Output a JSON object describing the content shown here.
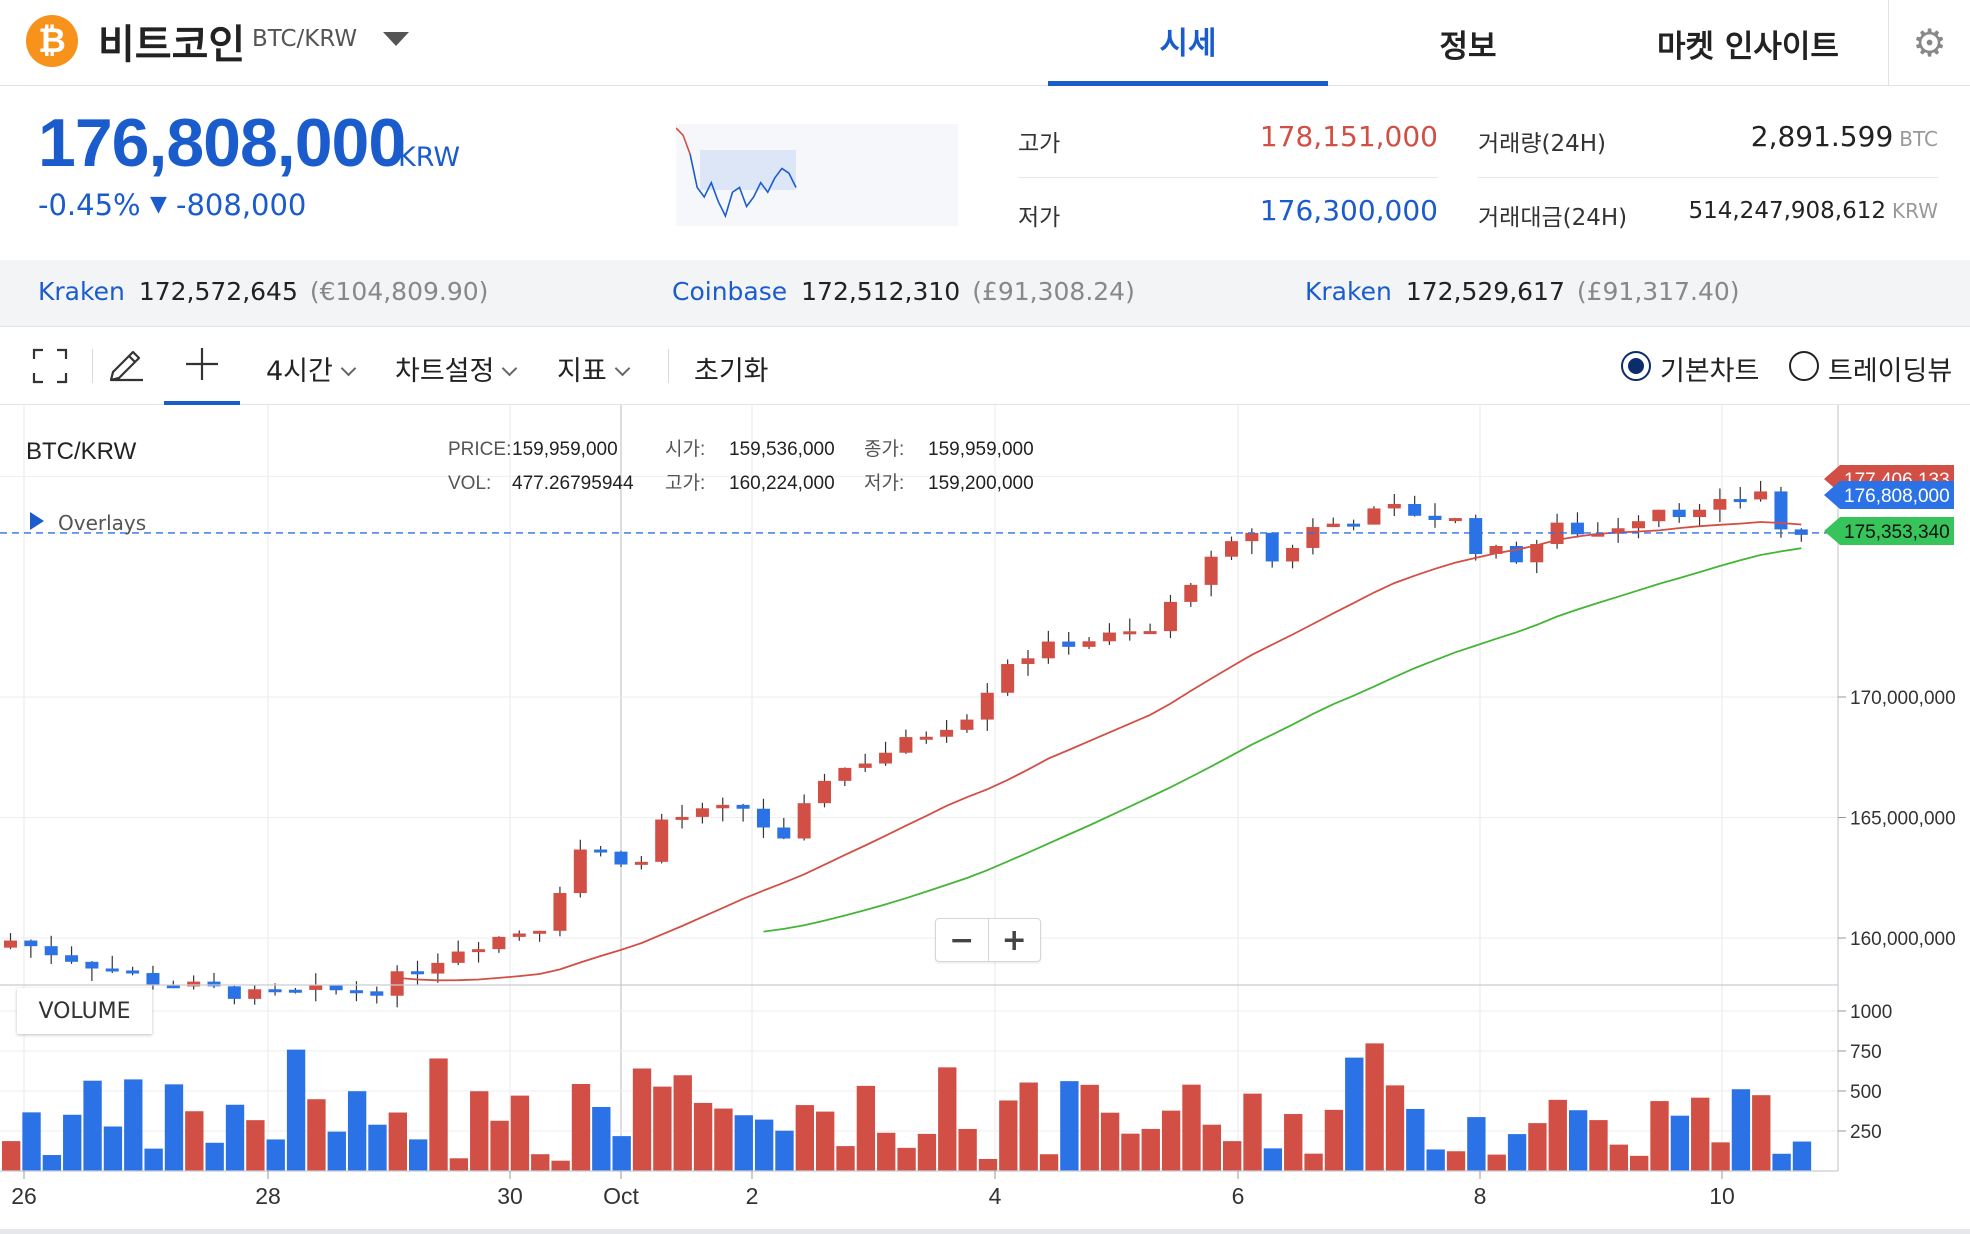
{
  "header": {
    "coin_symbol": "₿",
    "coin_name": "비트코인",
    "pair": "BTC/KRW",
    "tabs": [
      "시세",
      "정보",
      "마켓 인사이트"
    ],
    "active_tab": "시세",
    "settings_icon": "gear-icon"
  },
  "summary": {
    "price": "176,808,000",
    "price_unit": "KRW",
    "change_pct": "-0.45%",
    "change_arrow": "▼",
    "change_amt": "-808,000",
    "high_label": "고가",
    "high_value": "178,151,000",
    "low_label": "저가",
    "low_value": "176,300,000",
    "volume_label": "거래량(24H)",
    "volume_value": "2,891.599",
    "volume_unit": "BTC",
    "turnover_label": "거래대금(24H)",
    "turnover_value": "514,247,908,612",
    "turnover_unit": "KRW",
    "colors": {
      "rise": "#d24f45",
      "fall": "#1a5ccc"
    }
  },
  "sparkline": [
    178.15,
    178.0,
    177.6,
    176.9,
    176.7,
    177.0,
    176.6,
    176.3,
    176.8,
    176.9,
    176.5,
    176.7,
    177.0,
    176.8,
    177.1,
    177.3,
    177.2,
    176.9
  ],
  "exchanges": [
    {
      "name": "Kraken",
      "price": "172,572,645",
      "sub": "(€104,809.90)"
    },
    {
      "name": "Coinbase",
      "price": "172,512,310",
      "sub": "(£91,308.24)"
    },
    {
      "name": "Kraken",
      "price": "172,529,617",
      "sub": "(£91,317.40)"
    }
  ],
  "toolbar": {
    "expand_icon": "expand-icon",
    "draw_icon": "pencil-icon",
    "crosshair_icon": "crosshair-icon",
    "interval": "4시간",
    "chart_settings": "차트설정",
    "indicators": "지표",
    "reset": "초기화",
    "basic_chart": "기본차트",
    "tradingview": "트레이딩뷰"
  },
  "legend": {
    "symbol": "BTC/KRW",
    "price_label": "PRICE:",
    "price": "159,959,000",
    "vol_label": "VOL:",
    "vol": "477.26795944",
    "open_label": "시가:",
    "open": "159,536,000",
    "high_label": "고가:",
    "high": "160,224,000",
    "close_label": "종가:",
    "close": "159,959,000",
    "low_label": "저가:",
    "low": "159,200,000",
    "overlays": "Overlays"
  },
  "volume_title": "VOLUME",
  "chart_data": {
    "type": "candlestick",
    "x_ticks": [
      "26",
      "28",
      "30",
      "Oct",
      "2",
      "4",
      "6",
      "8",
      "10"
    ],
    "y_ticks": [
      "170,000,000",
      "165,000,000",
      "160,000,000"
    ],
    "y_tick_values": [
      170000000,
      165000000,
      160000000
    ],
    "volume_ticks": [
      "1000",
      "750",
      "500",
      "250"
    ],
    "volume_tick_values": [
      1000,
      750,
      500,
      250
    ],
    "price_tags": [
      {
        "label": "177,406,133",
        "value": 177406133,
        "color": "#d24f45"
      },
      {
        "label": "176,808,000",
        "value": 176808000,
        "color": "#2b72e6"
      },
      {
        "label": "175,353,340",
        "value": 175353340,
        "color": "#37c45a"
      }
    ],
    "current_price": 176808000,
    "ma_colors": {
      "short": "#d24f45",
      "long": "#44b536"
    },
    "candle_colors": {
      "up": "#d24f45",
      "down": "#2b72e6"
    }
  },
  "zoom": {
    "minus": "−",
    "plus": "+"
  }
}
